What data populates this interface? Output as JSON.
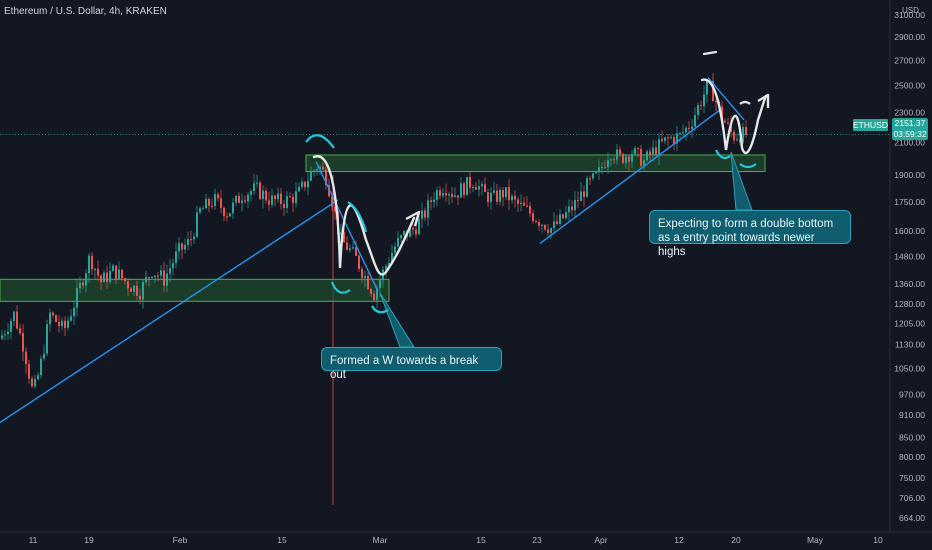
{
  "header": {
    "title": "Ethereum / U.S. Dollar, 4h, KRAKEN",
    "currency": "USD"
  },
  "price_scale": {
    "ticks": [
      "3100.00",
      "2900.00",
      "2700.00",
      "2500.00",
      "2300.00",
      "2100.00",
      "1900.00",
      "1750.00",
      "1600.00",
      "1480.00",
      "1360.00",
      "1280.00",
      "1205.00",
      "1130.00",
      "1050.00",
      "970.00",
      "910.00",
      "850.00",
      "800.00",
      "750.00",
      "706.00",
      "664.00"
    ]
  },
  "time_scale": {
    "ticks": [
      "11",
      "19",
      "Feb",
      "15",
      "Mar",
      "15",
      "23",
      "Apr",
      "12",
      "20",
      "May",
      "10"
    ]
  },
  "symbol_tag": "ETHUSD",
  "last_price": "2151.37",
  "countdown": "03:59:32",
  "annotations": {
    "w_pattern": "Formed a W towards a break out",
    "double_bottom": "Expecting to form a double bottom as a entry point towards newer highs"
  },
  "colors": {
    "background": "#131722",
    "up_candle": "#26a69a",
    "down_candle": "#ef5350",
    "trendline": "#2196f3",
    "zone_fill": "#1e4d2b",
    "zone_border": "#4caf50",
    "callout": "#0f5d6e"
  },
  "chart_data": {
    "type": "candlestick",
    "title": "Ethereum / U.S. Dollar, 4h, KRAKEN",
    "x_ticks": [
      "11",
      "19",
      "Feb",
      "15",
      "Mar",
      "15",
      "23",
      "Apr",
      "12",
      "20",
      "May",
      "10"
    ],
    "y_ticks": [
      3100,
      2900,
      2700,
      2500,
      2300,
      2100,
      1900,
      1750,
      1600,
      1480,
      1360,
      1280,
      1205,
      1130,
      1050,
      970,
      910,
      850,
      800,
      750,
      706,
      664
    ],
    "y_scale": "log",
    "ylim": [
      640,
      3150
    ],
    "last_price": 2151.37,
    "series": [
      {
        "price_path": [
          [
            0,
            1150
          ],
          [
            14,
            1240
          ],
          [
            24,
            1120
          ],
          [
            33,
            970
          ],
          [
            40,
            1050
          ],
          [
            50,
            1240
          ],
          [
            64,
            1180
          ],
          [
            76,
            1300
          ],
          [
            90,
            1480
          ],
          [
            101,
            1370
          ],
          [
            114,
            1420
          ],
          [
            128,
            1360
          ],
          [
            140,
            1330
          ],
          [
            152,
            1420
          ],
          [
            164,
            1380
          ],
          [
            178,
            1500
          ],
          [
            190,
            1550
          ],
          [
            200,
            1700
          ],
          [
            214,
            1760
          ],
          [
            228,
            1690
          ],
          [
            242,
            1790
          ],
          [
            256,
            1820
          ],
          [
            270,
            1760
          ],
          [
            284,
            1750
          ],
          [
            298,
            1790
          ],
          [
            310,
            1900
          ],
          [
            318,
            1960
          ],
          [
            326,
            1890
          ],
          [
            333,
            1740
          ],
          [
            340,
            1560
          ],
          [
            348,
            1520
          ],
          [
            356,
            1470
          ],
          [
            364,
            1400
          ],
          [
            374,
            1320
          ],
          [
            384,
            1420
          ],
          [
            394,
            1520
          ],
          [
            404,
            1580
          ],
          [
            414,
            1610
          ],
          [
            424,
            1680
          ],
          [
            434,
            1790
          ],
          [
            444,
            1840
          ],
          [
            454,
            1790
          ],
          [
            464,
            1830
          ],
          [
            474,
            1870
          ],
          [
            484,
            1790
          ],
          [
            494,
            1770
          ],
          [
            504,
            1800
          ],
          [
            516,
            1740
          ],
          [
            528,
            1700
          ],
          [
            540,
            1650
          ],
          [
            552,
            1610
          ],
          [
            562,
            1660
          ],
          [
            574,
            1730
          ],
          [
            586,
            1830
          ],
          [
            598,
            1900
          ],
          [
            610,
            2050
          ],
          [
            620,
            2000
          ],
          [
            632,
            2040
          ],
          [
            644,
            1980
          ],
          [
            656,
            2060
          ],
          [
            668,
            2120
          ],
          [
            680,
            2140
          ],
          [
            690,
            2220
          ],
          [
            700,
            2370
          ],
          [
            708,
            2500
          ],
          [
            714,
            2430
          ],
          [
            720,
            2290
          ],
          [
            727,
            2210
          ],
          [
            733,
            2140
          ],
          [
            740,
            2150
          ],
          [
            746,
            2151.37
          ]
        ]
      }
    ],
    "zones": [
      {
        "x_start": 306,
        "x_end": 765,
        "price_high": 2020,
        "price_low": 1920
      },
      {
        "x_start": 0,
        "x_end": 389,
        "price_high": 1380,
        "price_low": 1290
      }
    ],
    "trendlines": [
      {
        "from": [
          0,
          890
        ],
        "to": [
          338,
          1760
        ]
      },
      {
        "from": [
          540,
          1540
        ],
        "to": [
          722,
          2330
        ]
      },
      {
        "from": [
          316,
          1980
        ],
        "to": [
          378,
          1330
        ]
      },
      {
        "from": [
          708,
          2560
        ],
        "to": [
          744,
          2250
        ]
      }
    ]
  }
}
